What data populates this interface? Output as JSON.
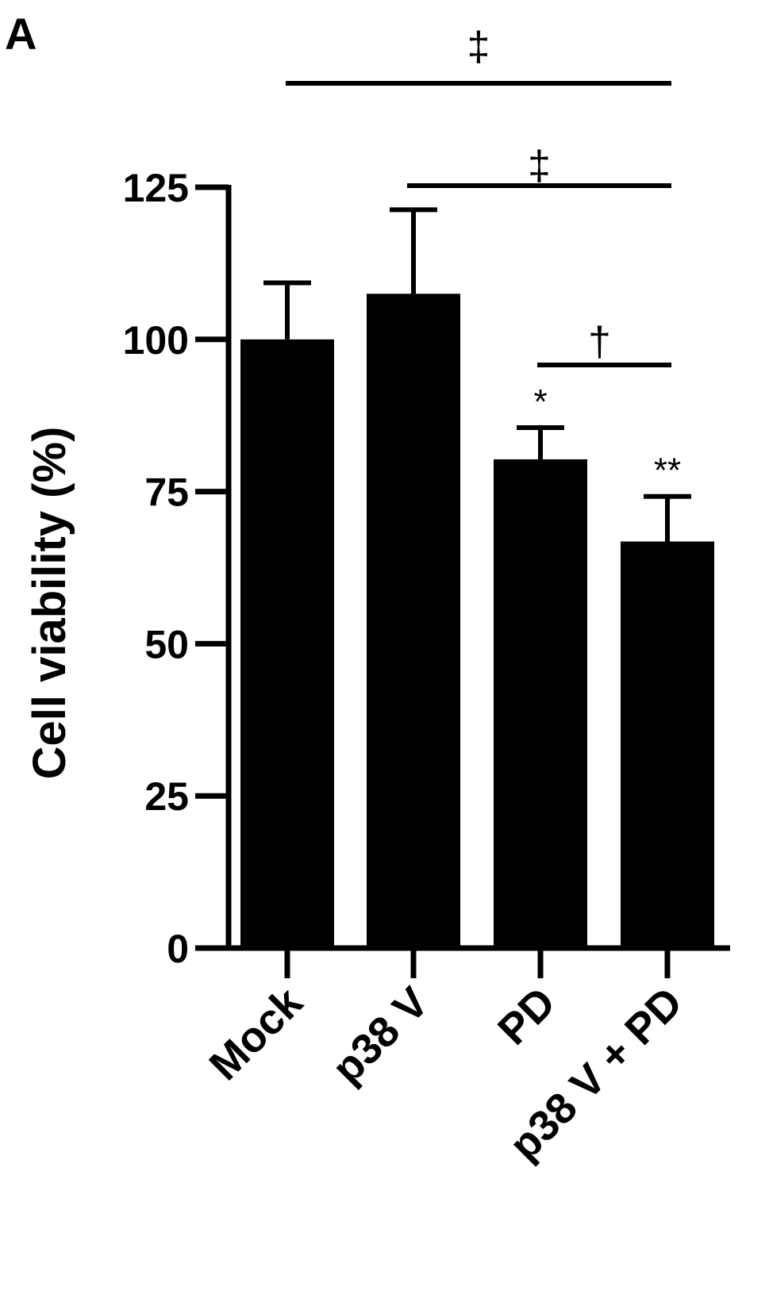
{
  "panel_label": "A",
  "chart_data": {
    "type": "bar",
    "categories": [
      "Mock",
      "p38 V",
      "PD",
      "p38 V + PD"
    ],
    "values": [
      100,
      107.5,
      80.3,
      66.8
    ],
    "errors": [
      9.3,
      13.8,
      5.2,
      7.4
    ],
    "title": "",
    "xlabel": "",
    "ylabel": "Cell viability (%)",
    "ylim": [
      0,
      125
    ],
    "yticks": [
      0,
      25,
      50,
      75,
      100,
      125
    ],
    "bar_color": "#000000",
    "grid": false,
    "legend": "none",
    "point_annotations": [
      {
        "category": "PD",
        "text": "*"
      },
      {
        "category": "p38 V + PD",
        "text": "**"
      }
    ],
    "brackets": [
      {
        "from": "Mock",
        "to": "p38 V + PD",
        "symbol": "‡"
      },
      {
        "from": "p38 V",
        "to": "p38 V + PD",
        "symbol": "‡"
      },
      {
        "from": "PD",
        "to": "p38 V + PD",
        "symbol": "†"
      }
    ]
  }
}
